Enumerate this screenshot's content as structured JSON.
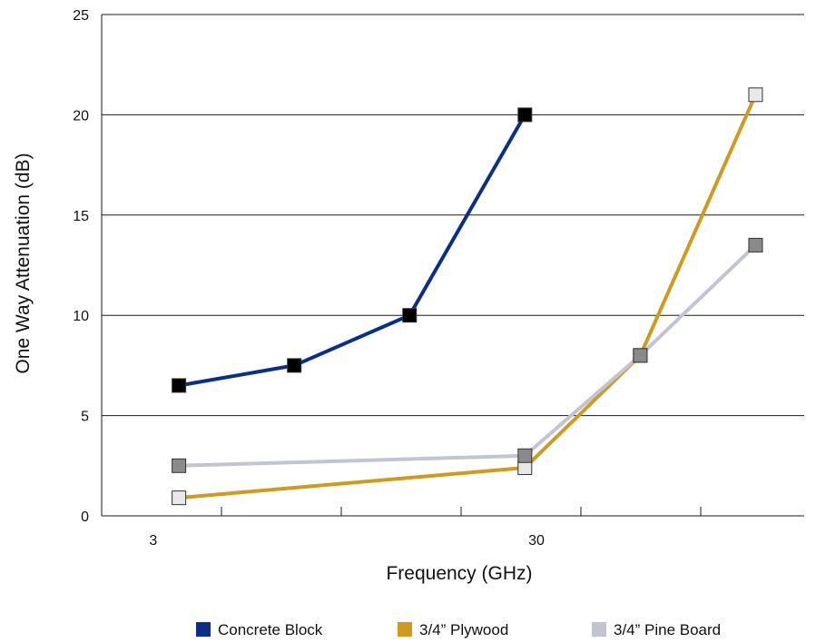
{
  "chart_data": {
    "type": "line",
    "xlabel": "Frequency (GHz)",
    "ylabel": "One Way Attenuation (dB)",
    "x_scale": "log",
    "x_tick_labels": [
      "3",
      "30"
    ],
    "ylim": [
      0,
      25
    ],
    "y_ticks": [
      0,
      5,
      10,
      15,
      20,
      25
    ],
    "grid": "horizontal",
    "legend_position": "bottom",
    "series": [
      {
        "name": "Concrete Block",
        "color": "#0a2f86",
        "marker_color": "#000000",
        "points": [
          {
            "x": 3.5,
            "y": 6.5
          },
          {
            "x": 7.0,
            "y": 7.5
          },
          {
            "x": 14.0,
            "y": 10
          },
          {
            "x": 28.0,
            "y": 20
          }
        ]
      },
      {
        "name": "3/4” Plywood",
        "color": "#d09a1f",
        "marker_color": "#e8e8e8",
        "points": [
          {
            "x": 3.5,
            "y": 0.9
          },
          {
            "x": 28.0,
            "y": 2.4
          },
          {
            "x": 56.0,
            "y": 8
          },
          {
            "x": 112.0,
            "y": 21
          }
        ]
      },
      {
        "name": "3/4” Pine Board",
        "color": "#c2c4d2",
        "marker_color": "#8a8a8a",
        "points": [
          {
            "x": 3.5,
            "y": 2.5
          },
          {
            "x": 28.0,
            "y": 3
          },
          {
            "x": 56.0,
            "y": 8
          },
          {
            "x": 112.0,
            "y": 13.5
          }
        ]
      }
    ]
  }
}
